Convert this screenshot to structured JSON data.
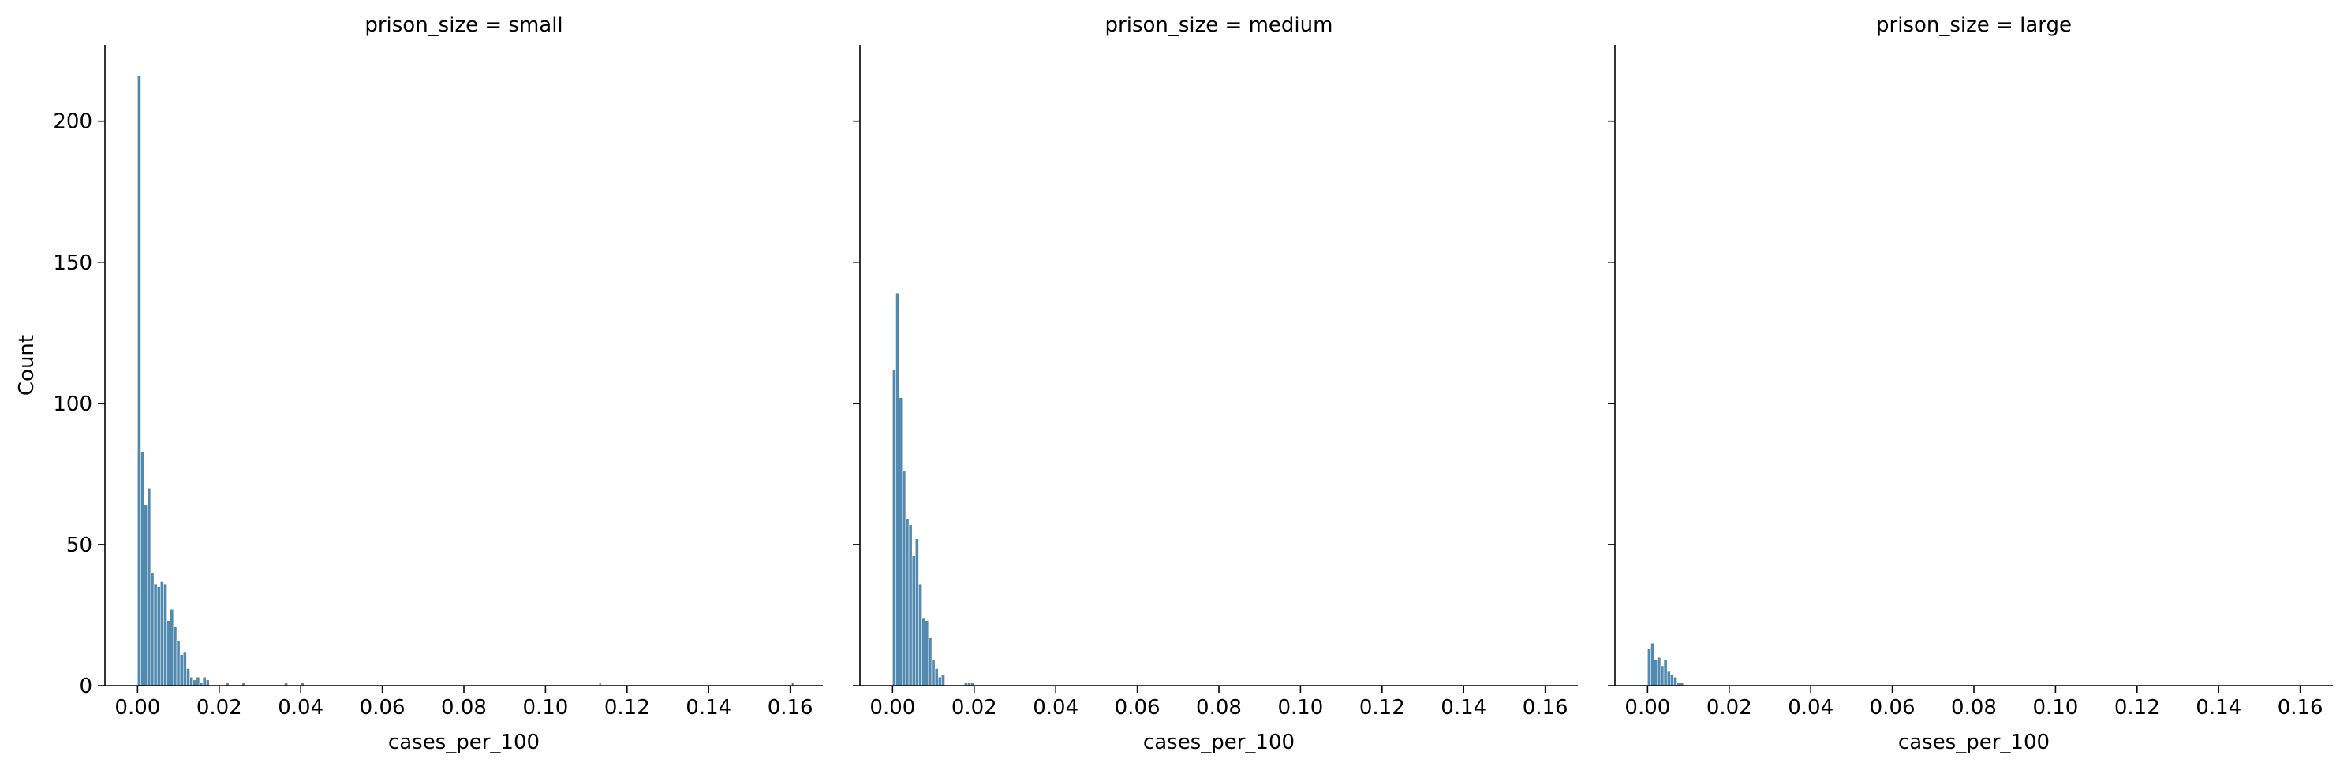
{
  "chart_data": [
    {
      "type": "bar",
      "title": "prison_size = small",
      "xlabel": "cases_per_100",
      "ylabel": "Count",
      "xlim": [
        -0.008,
        0.168
      ],
      "ylim": [
        0,
        227
      ],
      "xticks": [
        0.0,
        0.02,
        0.04,
        0.06,
        0.08,
        0.1,
        0.12,
        0.14,
        0.16
      ],
      "xtick_labels": [
        "0.00",
        "0.02",
        "0.04",
        "0.06",
        "0.08",
        "0.10",
        "0.12",
        "0.14",
        "0.16"
      ],
      "yticks": [
        0,
        50,
        100,
        150,
        200
      ],
      "ytick_labels": [
        "0",
        "50",
        "100",
        "150",
        "200"
      ],
      "bin_width": 0.0008,
      "bin_start": 0.0,
      "values": [
        216,
        83,
        64,
        70,
        40,
        36,
        35,
        37,
        36,
        23,
        27,
        21,
        16,
        11,
        12,
        6,
        3,
        2,
        3,
        1,
        3,
        2,
        0,
        0,
        0,
        0,
        0,
        1,
        0,
        0,
        0,
        0,
        1,
        0,
        0,
        0,
        0,
        0,
        0,
        0,
        0,
        0,
        0,
        0,
        0,
        1,
        0,
        0,
        0,
        0,
        1
      ],
      "outlier_values": [
        {
          "x": 0.1132,
          "count": 1
        },
        {
          "x": 0.1604,
          "count": 1
        }
      ],
      "color": "#3274a1",
      "grid": false
    },
    {
      "type": "bar",
      "title": "prison_size = medium",
      "xlabel": "cases_per_100",
      "ylabel": "",
      "xlim": [
        -0.008,
        0.168
      ],
      "ylim": [
        0,
        227
      ],
      "xticks": [
        0.0,
        0.02,
        0.04,
        0.06,
        0.08,
        0.1,
        0.12,
        0.14,
        0.16
      ],
      "xtick_labels": [
        "0.00",
        "0.02",
        "0.04",
        "0.06",
        "0.08",
        "0.10",
        "0.12",
        "0.14",
        "0.16"
      ],
      "bin_width": 0.0008,
      "bin_start": 0.0,
      "values": [
        112,
        139,
        102,
        76,
        59,
        57,
        46,
        52,
        36,
        24,
        23,
        17,
        9,
        6,
        3,
        4,
        0,
        0,
        0,
        0,
        0,
        0,
        1,
        1,
        1
      ],
      "color": "#3274a1",
      "grid": false
    },
    {
      "type": "bar",
      "title": "prison_size = large",
      "xlabel": "cases_per_100",
      "ylabel": "",
      "xlim": [
        -0.008,
        0.168
      ],
      "ylim": [
        0,
        227
      ],
      "xticks": [
        0.0,
        0.02,
        0.04,
        0.06,
        0.08,
        0.1,
        0.12,
        0.14,
        0.16
      ],
      "xtick_labels": [
        "0.00",
        "0.02",
        "0.04",
        "0.06",
        "0.08",
        "0.10",
        "0.12",
        "0.14",
        "0.16"
      ],
      "bin_width": 0.0008,
      "bin_start": 0.0,
      "values": [
        13,
        15,
        9,
        10,
        7,
        9,
        5,
        4,
        3,
        1,
        1
      ],
      "color": "#3274a1",
      "grid": false
    }
  ]
}
